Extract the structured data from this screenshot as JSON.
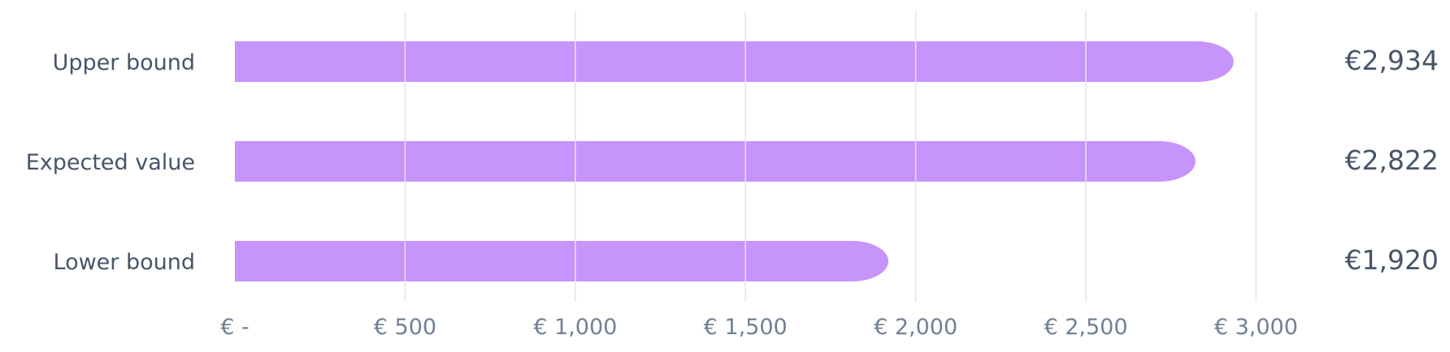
{
  "chart_data": {
    "type": "bar",
    "orientation": "horizontal",
    "categories": [
      "Upper bound",
      "Expected value",
      "Lower bound"
    ],
    "values": [
      2934,
      2822,
      1920
    ],
    "value_labels": [
      "€2,934",
      "€2,822",
      "€1,920"
    ],
    "title": "",
    "xlabel": "",
    "ylabel": "",
    "xlim": [
      0,
      3000
    ],
    "xticks": [
      0,
      500,
      1000,
      1500,
      2000,
      2500,
      3000
    ],
    "xtick_labels": [
      "€ -",
      "€ 500",
      "€ 1,000",
      "€ 1,500",
      "€ 2,000",
      "€ 2,500",
      "€ 3,000"
    ],
    "grid": "vertical",
    "legend": "none",
    "bar_color": "#c694fa"
  }
}
